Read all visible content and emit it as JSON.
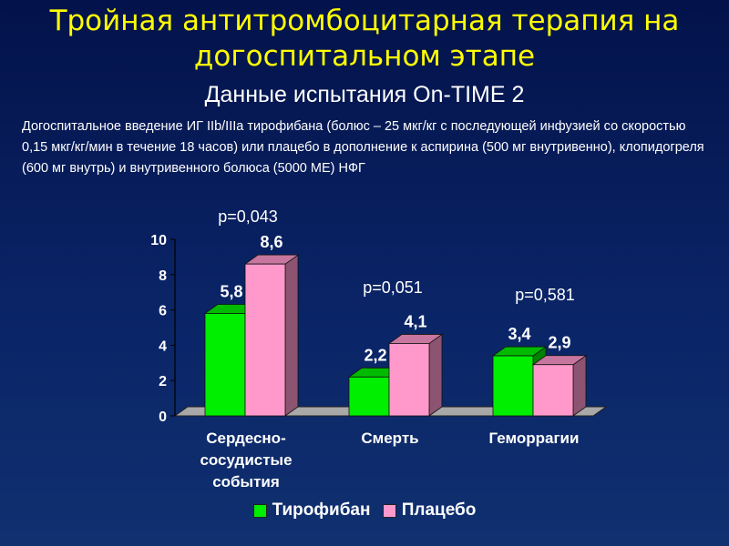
{
  "slide": {
    "title": "Тройная антитромбоцитарная терапия на догоспитальном этапе",
    "subtitle": "Данные испытания On-TIME 2",
    "description": "Догоспитальное введение ИГ IIb/IIIa  тирофибана (болюс – 25 мкг/кг с последующей инфузией со скоростью 0,15 мкг/кг/мин в течение 18 часов) или плацебо в дополнение к аспирина (500 мг внутривенно), клопидогреля (600 мг внутрь) и внутривенного болюса (5000 МЕ) НФГ"
  },
  "colors": {
    "background": "#0a2466",
    "title": "#ffff00",
    "tirofiban": "#00ee00",
    "placebo": "#ff99cc"
  },
  "chart_data": {
    "type": "bar",
    "categories": [
      "Сердесно-сосудистые события",
      "Смерть",
      "Геморрагии"
    ],
    "category_lines": [
      [
        "Сердесно-",
        "сосудистые",
        "события"
      ],
      [
        "Смерть"
      ],
      [
        "Геморрагии"
      ]
    ],
    "series": [
      {
        "name": "Тирофибан",
        "values": [
          5.8,
          2.2,
          3.4
        ],
        "labels": [
          "5,8",
          "2,2",
          "3,4"
        ],
        "color": "#00ee00"
      },
      {
        "name": "Плацебо",
        "values": [
          8.6,
          4.1,
          2.9
        ],
        "labels": [
          "8,6",
          "4,1",
          "2,9"
        ],
        "color": "#ff99cc"
      }
    ],
    "p_values": [
      "p=0,043",
      "p=0,051",
      "p=0,581"
    ],
    "ylim": [
      0,
      10
    ],
    "yticks": [
      "0",
      "2",
      "4",
      "6",
      "8",
      "10"
    ],
    "grid": false,
    "legend": "bottom",
    "style": "3d"
  }
}
